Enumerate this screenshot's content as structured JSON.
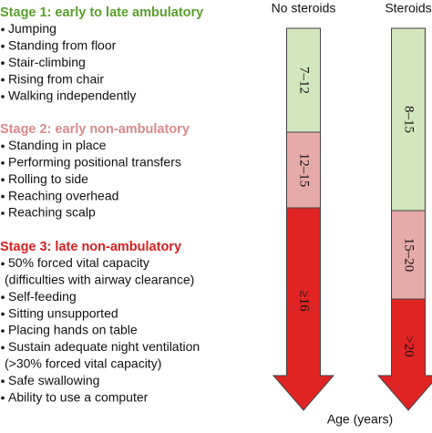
{
  "stages": [
    {
      "title": "Stage 1: early to late ambulatory",
      "color": "#5aa02c",
      "items": [
        [
          "Jumping"
        ],
        [
          "Standing from floor"
        ],
        [
          "Stair-climbing"
        ],
        [
          "Rising from chair"
        ],
        [
          "Walking independently"
        ]
      ]
    },
    {
      "title": "Stage 2: early non-ambulatory",
      "color": "#d98a8a",
      "items": [
        [
          "Standing in place"
        ],
        [
          "Performing positional transfers"
        ],
        [
          "Rolling to side"
        ],
        [
          "Reaching overhead"
        ],
        [
          "Reaching scalp"
        ]
      ]
    },
    {
      "title": "Stage 3: late non-ambulatory",
      "color": "#d82020",
      "items": [
        [
          "50% forced vital capacity",
          "(difficulties with airway clearance)"
        ],
        [
          "Self-feeding"
        ],
        [
          "Sitting unsupported"
        ],
        [
          "Placing hands on table"
        ],
        [
          "Sustain adequate night ventilation",
          "(>30% forced vital capacity)"
        ],
        [
          "Safe swallowing"
        ],
        [
          "Ability to use a computer"
        ]
      ]
    }
  ],
  "columns": [
    {
      "title": "No steroids",
      "segments": [
        {
          "label": "7–12",
          "color": "#d3e6bd"
        },
        {
          "label": "12–15",
          "color": "#e6aaa8"
        },
        {
          "label": "≥16",
          "color": "#e02424"
        }
      ]
    },
    {
      "title": "Steroids",
      "segments": [
        {
          "label": "8–15",
          "color": "#d3e6bd"
        },
        {
          "label": "15–20",
          "color": "#e6aaa8"
        },
        {
          "label": ">20",
          "color": "#e02424"
        }
      ]
    }
  ],
  "axis_label": "Age (years)"
}
